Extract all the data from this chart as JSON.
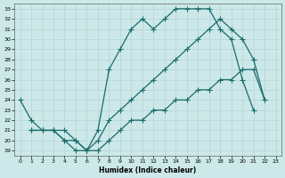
{
  "title": "",
  "xlabel": "Humidex (Indice chaleur)",
  "bg_color": "#cce8e8",
  "grid_color": "#aaaaaa",
  "line_color": "#1a6b6b",
  "xlim": [
    -0.5,
    23.5
  ],
  "ylim": [
    18.5,
    33.5
  ],
  "xticks": [
    0,
    1,
    2,
    3,
    4,
    5,
    6,
    7,
    8,
    9,
    10,
    11,
    12,
    13,
    14,
    15,
    16,
    17,
    18,
    19,
    20,
    21,
    22,
    23
  ],
  "yticks": [
    19,
    20,
    21,
    22,
    23,
    24,
    25,
    26,
    27,
    28,
    29,
    30,
    31,
    32,
    33
  ],
  "curve1_x": [
    0,
    1,
    2,
    3,
    4,
    5,
    6,
    7,
    8,
    9,
    10,
    11,
    12,
    13,
    14,
    15,
    16,
    17,
    18,
    19,
    20,
    21
  ],
  "curve1_y": [
    24,
    22,
    21,
    21,
    20,
    19,
    19,
    21,
    27,
    29,
    31,
    32,
    31,
    32,
    33,
    33,
    33,
    33,
    31,
    30,
    26,
    23
  ],
  "curve2_x": [
    1,
    2,
    3,
    4,
    5,
    6,
    7,
    8,
    9,
    10,
    11,
    12,
    13,
    14,
    15,
    16,
    17,
    18,
    19,
    20,
    21,
    22
  ],
  "curve2_y": [
    21,
    21,
    21,
    20,
    20,
    19,
    20,
    22,
    23,
    24,
    25,
    26,
    27,
    28,
    29,
    30,
    31,
    32,
    31,
    30,
    28,
    24
  ],
  "curve3_x": [
    1,
    2,
    3,
    4,
    5,
    6,
    7,
    8,
    9,
    10,
    11,
    12,
    13,
    14,
    15,
    16,
    17,
    18,
    19,
    20,
    21,
    22
  ],
  "curve3_y": [
    21,
    21,
    21,
    21,
    20,
    19,
    19,
    20,
    21,
    22,
    22,
    23,
    23,
    24,
    24,
    25,
    25,
    26,
    26,
    27,
    27,
    24
  ]
}
